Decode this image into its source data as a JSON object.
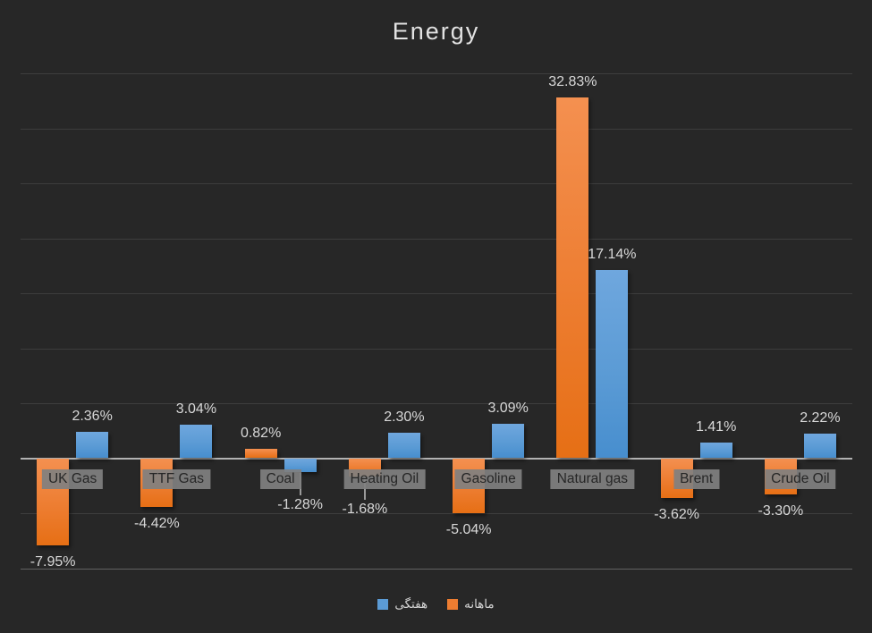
{
  "chart_data": {
    "type": "bar",
    "title": "Energy",
    "categories": [
      "UK Gas",
      "TTF Gas",
      "Coal",
      "Heating Oil",
      "Gasoline",
      "Natural gas",
      "Brent",
      "Crude Oil"
    ],
    "series": [
      {
        "name": "ماهانه",
        "key": "monthly",
        "color": "#ED7D31",
        "values": [
          -7.95,
          -4.42,
          0.82,
          -1.68,
          -5.04,
          32.83,
          -3.62,
          -3.3
        ],
        "labels": [
          "-7.95%",
          "-4.42%",
          "0.82%",
          "-1.68%",
          "-5.04%",
          "32.83%",
          "-3.62%",
          "-3.30%"
        ]
      },
      {
        "name": "هفتگی",
        "key": "weekly",
        "color": "#5B9BD5",
        "values": [
          2.36,
          3.04,
          -1.28,
          2.3,
          3.09,
          17.14,
          1.41,
          2.22
        ],
        "labels": [
          "2.36%",
          "3.04%",
          "-1.28%",
          "2.30%",
          "3.09%",
          "17.14%",
          "1.41%",
          "2.22%"
        ]
      }
    ],
    "ylim": [
      -10,
      35
    ],
    "gridline_step": 5,
    "grid": true,
    "legend_position": "bottom",
    "legend": [
      {
        "label": "هفتگی",
        "key": "weekly",
        "color": "#5B9BD5"
      },
      {
        "label": "ماهانه",
        "key": "monthly",
        "color": "#ED7D31"
      }
    ],
    "leader_lines": [
      {
        "series": 1,
        "category": 2
      },
      {
        "series": 0,
        "category": 3
      }
    ]
  },
  "colors": {
    "background": "#272727",
    "gridline": "#3D3D3D",
    "bottom_gridline": "#636363",
    "zero_axis": "#B2B2B2",
    "data_label": "#D8D8D8",
    "category_label_bg": "#808080",
    "category_label_text": "#262626",
    "title": "#E2E2E2",
    "legend_text": "#D4D4D4"
  }
}
